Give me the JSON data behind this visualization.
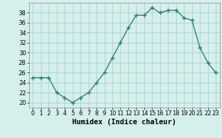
{
  "x": [
    0,
    1,
    2,
    3,
    4,
    5,
    6,
    7,
    8,
    9,
    10,
    11,
    12,
    13,
    14,
    15,
    16,
    17,
    18,
    19,
    20,
    21,
    22,
    23
  ],
  "y": [
    25,
    25,
    25,
    22,
    21,
    20,
    21,
    22,
    24,
    26,
    29,
    32,
    35,
    37.5,
    37.5,
    39,
    38,
    38.5,
    38.5,
    37,
    36.5,
    31,
    28,
    26
  ],
  "line_color": "#2e7d6e",
  "marker": "+",
  "marker_size": 4,
  "bg_color": "#d5efec",
  "grid_color": "#aacfcc",
  "xlabel": "Humidex (Indice chaleur)",
  "xlim": [
    -0.5,
    23.5
  ],
  "ylim": [
    19,
    40
  ],
  "yticks": [
    20,
    22,
    24,
    26,
    28,
    30,
    32,
    34,
    36,
    38
  ],
  "xticks": [
    0,
    1,
    2,
    3,
    4,
    5,
    6,
    7,
    8,
    9,
    10,
    11,
    12,
    13,
    14,
    15,
    16,
    17,
    18,
    19,
    20,
    21,
    22,
    23
  ],
  "tick_fontsize": 6,
  "xlabel_fontsize": 7.5
}
